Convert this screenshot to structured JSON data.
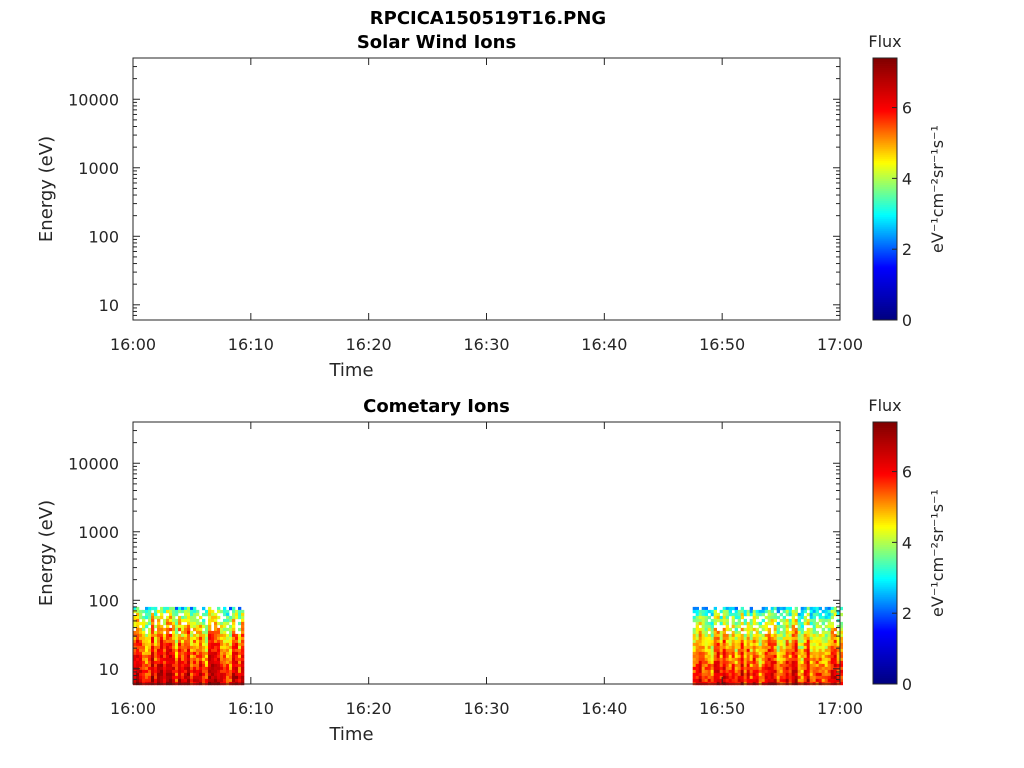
{
  "figure": {
    "title": "RPCICA150519T16.PNG"
  },
  "colormap": {
    "name": "jet",
    "stops": [
      "#00007f",
      "#0000ff",
      "#00ffff",
      "#ffff00",
      "#ff0000",
      "#7f0000"
    ]
  },
  "chart_data": [
    {
      "type": "heatmap",
      "title": "Solar Wind Ions",
      "xlabel": "Time",
      "ylabel": "Energy (eV)",
      "x_ticks": [
        "16:00",
        "16:10",
        "16:20",
        "16:30",
        "16:40",
        "16:50",
        "17:00"
      ],
      "x_range": [
        "16:00",
        "17:00"
      ],
      "y_scale": "log",
      "y_ticks": [
        10,
        100,
        1000,
        10000
      ],
      "y_range": [
        6,
        40000
      ],
      "colorbar": {
        "title": "Flux",
        "label": "eV⁻¹cm⁻²sr⁻¹s⁻¹",
        "ticks": [
          0,
          2,
          4,
          6
        ],
        "range": [
          0,
          7.4
        ]
      },
      "data_blocks": []
    },
    {
      "type": "heatmap",
      "title": "Cometary Ions",
      "xlabel": "Time",
      "ylabel": "Energy (eV)",
      "x_ticks": [
        "16:00",
        "16:10",
        "16:20",
        "16:30",
        "16:40",
        "16:50",
        "17:00"
      ],
      "x_range": [
        "16:00",
        "17:00"
      ],
      "y_scale": "log",
      "y_ticks": [
        10,
        100,
        1000,
        10000
      ],
      "y_range": [
        6,
        40000
      ],
      "colorbar": {
        "title": "Flux",
        "label": "eV⁻¹cm⁻²sr⁻¹s⁻¹",
        "ticks": [
          0,
          2,
          4,
          6
        ],
        "range": [
          0,
          7.4
        ]
      },
      "data_blocks": [
        {
          "start": "16:00",
          "end": "16:09:15",
          "energy_min": 6,
          "energy_max": 80,
          "flux_low_energy": 6.4,
          "flux_high_energy": 3.0
        },
        {
          "start": "16:47:30",
          "end": "17:00",
          "energy_min": 6,
          "energy_max": 80,
          "flux_low_energy": 6.0,
          "flux_high_energy": 2.8
        }
      ]
    }
  ]
}
